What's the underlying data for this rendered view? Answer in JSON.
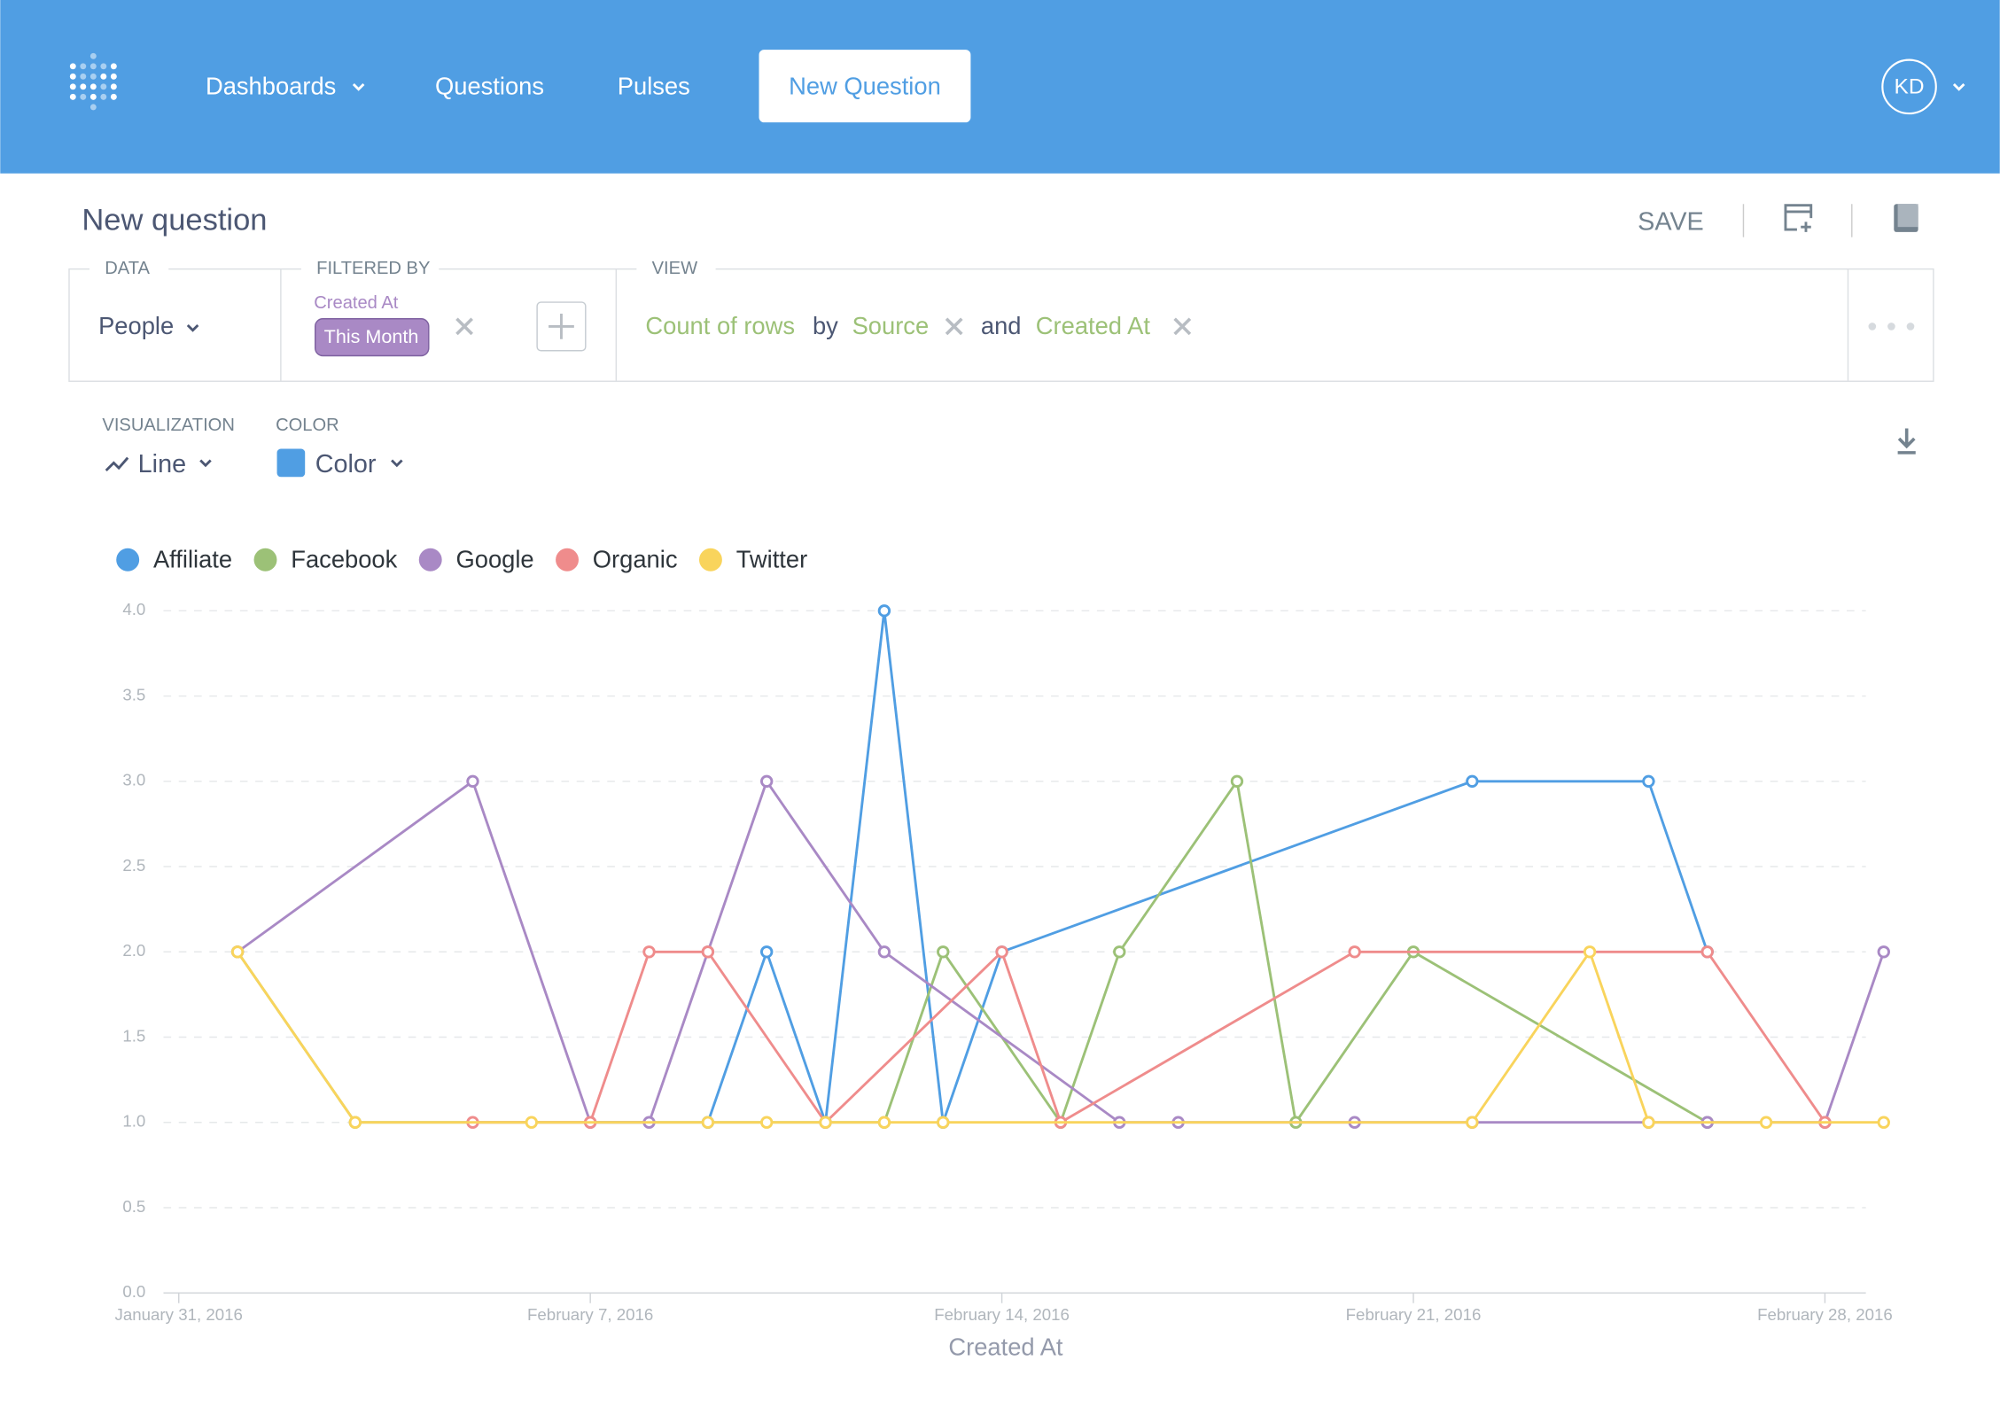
{
  "nav": {
    "items": [
      "Dashboards",
      "Questions",
      "Pulses"
    ],
    "button": "New Question",
    "avatar": "KD"
  },
  "header": {
    "title": "New question",
    "save": "SAVE"
  },
  "query": {
    "data_label": "DATA",
    "table": "People",
    "filter_label": "FILTERED BY",
    "filter_field": "Created At",
    "filter_value": "This Month",
    "view_label": "VIEW",
    "metric": "Count of rows",
    "by": "by",
    "breakout1": "Source",
    "and": "and",
    "breakout2": "Created At"
  },
  "viz": {
    "visualization_label": "VISUALIZATION",
    "visualization": "Line",
    "color_label": "COLOR",
    "color": "Color"
  },
  "chart_data": {
    "type": "line",
    "x_label": "Created At",
    "grid": true,
    "xlim": [
      "2016-01-31",
      "2016-02-29"
    ],
    "xticks": [
      {
        "value": "2016-01-31",
        "label": "January 31, 2016"
      },
      {
        "value": "2016-02-07",
        "label": "February 7, 2016"
      },
      {
        "value": "2016-02-14",
        "label": "February 14, 2016"
      },
      {
        "value": "2016-02-21",
        "label": "February 21, 2016"
      },
      {
        "value": "2016-02-28",
        "label": "February 28, 2016"
      }
    ],
    "ylim": [
      0,
      4
    ],
    "yticks": [
      {
        "value": 0,
        "label": "0.0"
      },
      {
        "value": 0.5,
        "label": "0.5"
      },
      {
        "value": 1,
        "label": "1.0"
      },
      {
        "value": 1.5,
        "label": "1.5"
      },
      {
        "value": 2,
        "label": "2.0"
      },
      {
        "value": 2.5,
        "label": "2.5"
      },
      {
        "value": 3,
        "label": "3.0"
      },
      {
        "value": 3.5,
        "label": "3.5"
      },
      {
        "value": 4,
        "label": "4.0"
      }
    ],
    "series": [
      {
        "name": "Affiliate",
        "color": "#509ee3",
        "x": [
          "2016-02-09",
          "2016-02-10",
          "2016-02-11",
          "2016-02-12",
          "2016-02-13",
          "2016-02-14",
          "2016-02-22",
          "2016-02-25",
          "2016-02-26"
        ],
        "values": [
          1,
          2,
          1,
          4,
          1,
          2,
          3,
          3,
          2
        ]
      },
      {
        "name": "Facebook",
        "color": "#9cc177",
        "x": [
          "2016-02-01",
          "2016-02-03",
          "2016-02-12",
          "2016-02-13",
          "2016-02-15",
          "2016-02-16",
          "2016-02-18",
          "2016-02-19",
          "2016-02-21",
          "2016-02-26"
        ],
        "values": [
          2,
          1,
          1,
          2,
          1,
          2,
          3,
          1,
          2,
          1
        ]
      },
      {
        "name": "Google",
        "color": "#a989c5",
        "x": [
          "2016-02-01",
          "2016-02-05",
          "2016-02-07",
          "2016-02-08",
          "2016-02-09",
          "2016-02-10",
          "2016-02-12",
          "2016-02-16",
          "2016-02-17",
          "2016-02-20",
          "2016-02-22",
          "2016-02-25",
          "2016-02-26",
          "2016-02-28",
          "2016-02-29"
        ],
        "values": [
          2,
          3,
          1,
          1,
          2,
          3,
          2,
          1,
          1,
          1,
          1,
          1,
          1,
          1,
          2
        ]
      },
      {
        "name": "Organic",
        "color": "#ef8c8c",
        "x": [
          "2016-02-05",
          "2016-02-07",
          "2016-02-08",
          "2016-02-09",
          "2016-02-11",
          "2016-02-14",
          "2016-02-15",
          "2016-02-20",
          "2016-02-26",
          "2016-02-28"
        ],
        "values": [
          1,
          1,
          2,
          2,
          1,
          2,
          1,
          2,
          2,
          1
        ]
      },
      {
        "name": "Twitter",
        "color": "#f9d45c",
        "x": [
          "2016-02-01",
          "2016-02-03",
          "2016-02-06",
          "2016-02-09",
          "2016-02-10",
          "2016-02-11",
          "2016-02-12",
          "2016-02-13",
          "2016-02-22",
          "2016-02-24",
          "2016-02-25",
          "2016-02-27",
          "2016-02-29"
        ],
        "values": [
          2,
          1,
          1,
          1,
          1,
          1,
          1,
          1,
          1,
          2,
          1,
          1,
          1
        ]
      }
    ]
  }
}
